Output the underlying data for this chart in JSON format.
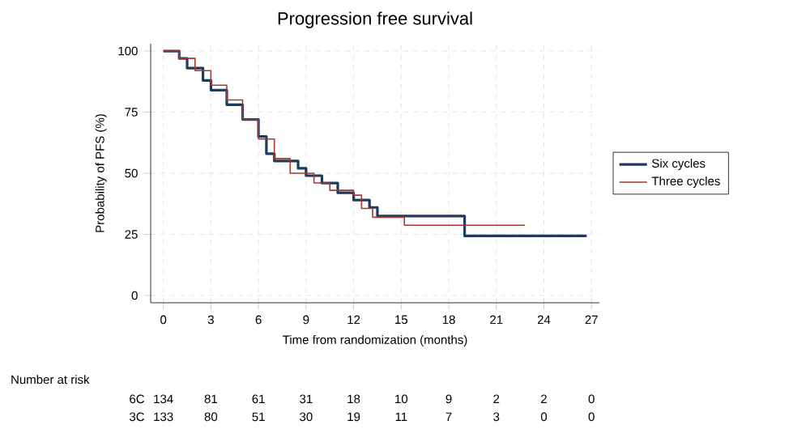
{
  "chart_data": {
    "type": "step",
    "title": "Progression free survival",
    "xlabel": "Time from randomization (months)",
    "ylabel": "Probability of PFS (%)",
    "xlim": [
      -0.8,
      27.5
    ],
    "ylim": [
      -3,
      103
    ],
    "xticks": [
      0,
      3,
      6,
      9,
      12,
      15,
      18,
      21,
      24,
      27
    ],
    "yticks": [
      0,
      25,
      50,
      75,
      100
    ],
    "grid": true,
    "legend": "right",
    "series": [
      {
        "name": "Six cycles",
        "color": "#1f3a5a",
        "x": [
          0,
          1,
          1.5,
          2.5,
          3,
          4,
          5,
          6,
          6.5,
          7,
          8.5,
          9,
          10,
          11,
          12,
          13,
          13.5,
          19,
          26.7
        ],
        "values": [
          100,
          97,
          93,
          88,
          84,
          78,
          72,
          65,
          58,
          55,
          52,
          49,
          46,
          42,
          39,
          36,
          32.5,
          24.4,
          24.4
        ]
      },
      {
        "name": "Three cycles",
        "color": "#a3392f",
        "x": [
          0,
          1,
          2,
          3,
          4,
          5,
          6,
          7,
          8,
          9.5,
          10.5,
          12,
          12.5,
          13.2,
          15.2,
          22.8
        ],
        "values": [
          100,
          97,
          92,
          86,
          80,
          72,
          64,
          56,
          50,
          46,
          43,
          41,
          35.6,
          32,
          28.7,
          28.7
        ]
      }
    ],
    "annotations": [
      "Number at risk",
      "6C",
      "134",
      "81",
      "61",
      "31",
      "18",
      "10",
      "9",
      "2",
      "2",
      "0",
      "3C",
      "133",
      "80",
      "51",
      "30",
      "19",
      "11",
      "7",
      "3",
      "0",
      "0"
    ]
  }
}
